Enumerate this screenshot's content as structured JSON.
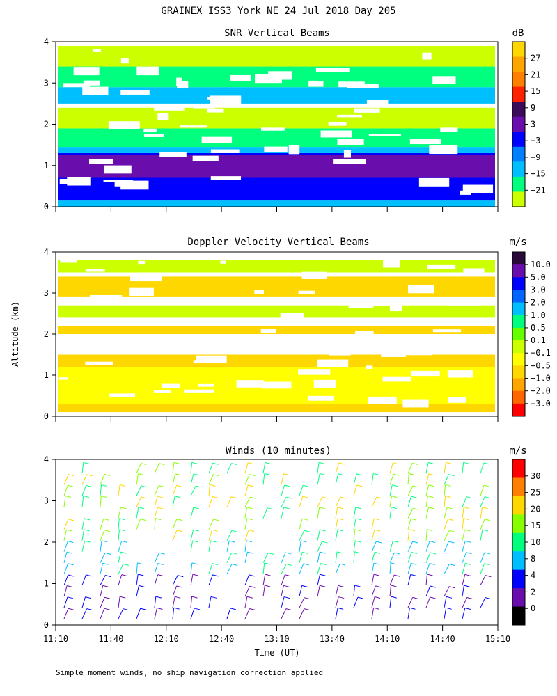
{
  "title": "GRAINEX ISS3 York NE  24 Jul 2018 Day 205",
  "ylabel": "Altitude (km)",
  "xlabel": "Time (UT)",
  "footnote": "Simple moment winds, no ship navigation correction applied",
  "x_ticks": [
    "11:10",
    "11:40",
    "12:10",
    "12:40",
    "13:10",
    "13:40",
    "14:10",
    "14:40",
    "15:10"
  ],
  "y_ticks": [
    "0",
    "1",
    "2",
    "3",
    "4"
  ],
  "chart_data": [
    {
      "type": "heatmap",
      "title": "SNR Vertical Beams",
      "x_range": [
        "11:10",
        "15:10"
      ],
      "ylim": [
        0,
        4
      ],
      "colorbar": {
        "unit": "dB",
        "labels": [
          "27",
          "21",
          "15",
          "9",
          "3",
          "−3",
          "−9",
          "−15",
          "−21"
        ],
        "colors": [
          "#ffd700",
          "#ffa500",
          "#ff7f00",
          "#ff2200",
          "#3c0a5a",
          "#6a0dad",
          "#0000ff",
          "#0080ff",
          "#00bfff",
          "#00ff7f",
          "#ccff00"
        ]
      },
      "bands": [
        {
          "y": [
            0.0,
            0.15
          ],
          "color": "#00bfff"
        },
        {
          "y": [
            0.15,
            1.3
          ],
          "color": "#0000ff"
        },
        {
          "y": [
            0.7,
            1.25
          ],
          "color": "#6a0dad"
        },
        {
          "y": [
            1.3,
            1.45
          ],
          "color": "#00bfff"
        },
        {
          "y": [
            1.45,
            1.9
          ],
          "color": "#00ff7f"
        },
        {
          "y": [
            1.9,
            2.4
          ],
          "color": "#ccff00"
        },
        {
          "y": [
            2.5,
            2.9
          ],
          "color": "#00bfff"
        },
        {
          "y": [
            2.9,
            3.4
          ],
          "color": "#00ff7f"
        },
        {
          "y": [
            3.4,
            3.9
          ],
          "color": "#ccff00"
        }
      ]
    },
    {
      "type": "heatmap",
      "title": "Doppler Velocity Vertical Beams",
      "x_range": [
        "11:10",
        "15:10"
      ],
      "ylim": [
        0,
        4
      ],
      "colorbar": {
        "unit": "m/s",
        "labels": [
          "10.0",
          "5.0",
          "3.0",
          "2.0",
          "1.0",
          "0.5",
          "0.1",
          "−0.1",
          "−0.5",
          "−1.0",
          "−2.0",
          "−3.0"
        ],
        "colors": [
          "#2a0a3a",
          "#6a0dad",
          "#0000ff",
          "#0066ff",
          "#00bfff",
          "#00ff7f",
          "#66ff00",
          "#ccff00",
          "#ffff00",
          "#ffd700",
          "#ffa500",
          "#ff6600",
          "#ff0000"
        ]
      },
      "bands": [
        {
          "y": [
            0.1,
            1.5
          ],
          "color": "#ffd700"
        },
        {
          "y": [
            0.3,
            1.2
          ],
          "color": "#ffff00"
        },
        {
          "y": [
            2.0,
            2.2
          ],
          "color": "#ffd700"
        },
        {
          "y": [
            2.4,
            2.7
          ],
          "color": "#ccff00"
        },
        {
          "y": [
            2.9,
            3.4
          ],
          "color": "#ffd700"
        },
        {
          "y": [
            3.5,
            3.8
          ],
          "color": "#ccff00"
        }
      ]
    },
    {
      "type": "scatter",
      "title": "Winds (10 minutes)",
      "x_range": [
        "11:10",
        "15:10"
      ],
      "ylim": [
        0,
        4
      ],
      "colorbar": {
        "unit": "m/s",
        "labels": [
          "30",
          "25",
          "20",
          "15",
          "10",
          "8",
          "4",
          "2",
          "0"
        ],
        "colors": [
          "#ff0000",
          "#ff7f00",
          "#ffd700",
          "#88ff00",
          "#00ff7f",
          "#00bfff",
          "#0000ff",
          "#6a0dad",
          "#000000"
        ]
      }
    }
  ]
}
